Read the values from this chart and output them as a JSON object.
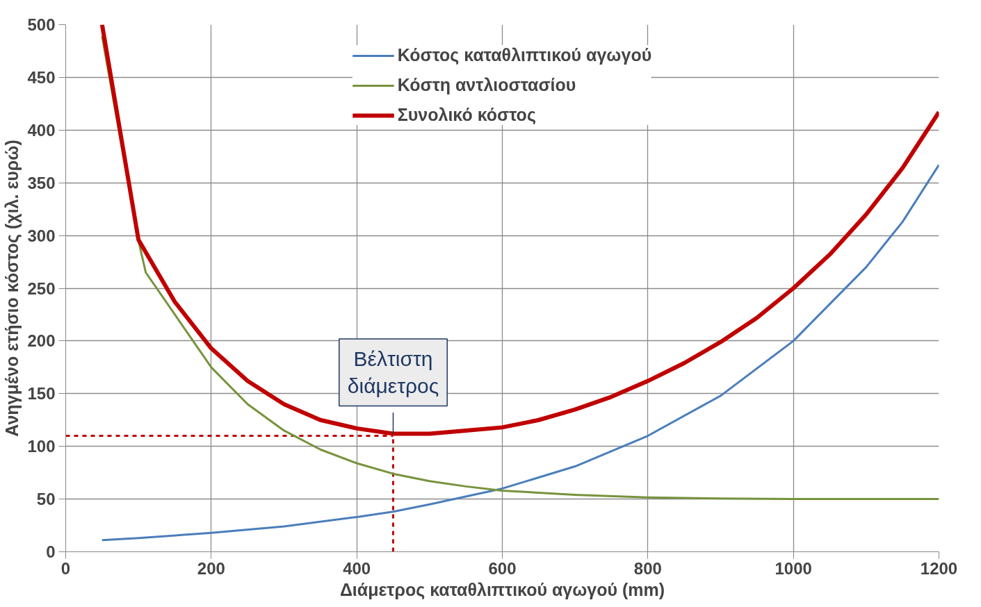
{
  "chart_data": {
    "type": "line",
    "xlabel": "Διάμετρος καταθλιπτικού αγωγού (mm)",
    "ylabel": "Ανηγμένο ετήσιο κόστος (χιλ. ευρώ)",
    "xlim": [
      0,
      1200
    ],
    "ylim": [
      0,
      500
    ],
    "xticks": [
      0,
      200,
      400,
      600,
      800,
      1000,
      1200
    ],
    "yticks": [
      0,
      50,
      100,
      150,
      200,
      250,
      300,
      350,
      400,
      450,
      500
    ],
    "grid": true,
    "legend": "top",
    "line_style": "solid",
    "marker": "none",
    "series": [
      {
        "name": "Κόστος καταθλιπτικού αγωγού",
        "color": "#4a7ebb",
        "x": [
          50,
          100,
          200,
          300,
          400,
          450,
          500,
          600,
          700,
          800,
          900,
          1000,
          1100,
          1150,
          1200
        ],
        "values": [
          11,
          13,
          18,
          24,
          33,
          38,
          45,
          60,
          81,
          110,
          148,
          200,
          270,
          313,
          367
        ]
      },
      {
        "name": "Κόστη αντλιοστασίου",
        "color": "#77933c",
        "x": [
          50,
          100,
          110,
          150,
          200,
          250,
          300,
          350,
          400,
          450,
          500,
          550,
          600,
          700,
          800,
          900,
          1000,
          1200
        ],
        "values": [
          489,
          295,
          265,
          225,
          175,
          140,
          115,
          97,
          84,
          74,
          67,
          62,
          58,
          54,
          51.5,
          50.5,
          50,
          50
        ]
      },
      {
        "name": "Συνολικό κόστος",
        "color": "#c00000",
        "x": [
          50,
          100,
          150,
          200,
          250,
          300,
          350,
          400,
          450,
          500,
          550,
          600,
          650,
          700,
          750,
          800,
          850,
          900,
          950,
          1000,
          1050,
          1100,
          1150,
          1200
        ],
        "values": [
          500,
          296,
          237,
          193,
          162,
          140,
          125,
          117,
          112,
          112,
          115,
          118,
          125,
          135,
          147,
          162,
          179,
          199,
          222,
          250,
          282,
          320,
          364,
          417
        ]
      }
    ],
    "ref_lines": [
      {
        "axis": "y",
        "value": 110,
        "color": "#c00000",
        "line_style": "dashed"
      },
      {
        "axis": "x",
        "value": 450,
        "color": "#c00000",
        "line_style": "dashed"
      }
    ],
    "annotations": [
      {
        "text": "Βέλτιστη\nδιάμετρος",
        "x": 450,
        "y": 112
      }
    ]
  }
}
